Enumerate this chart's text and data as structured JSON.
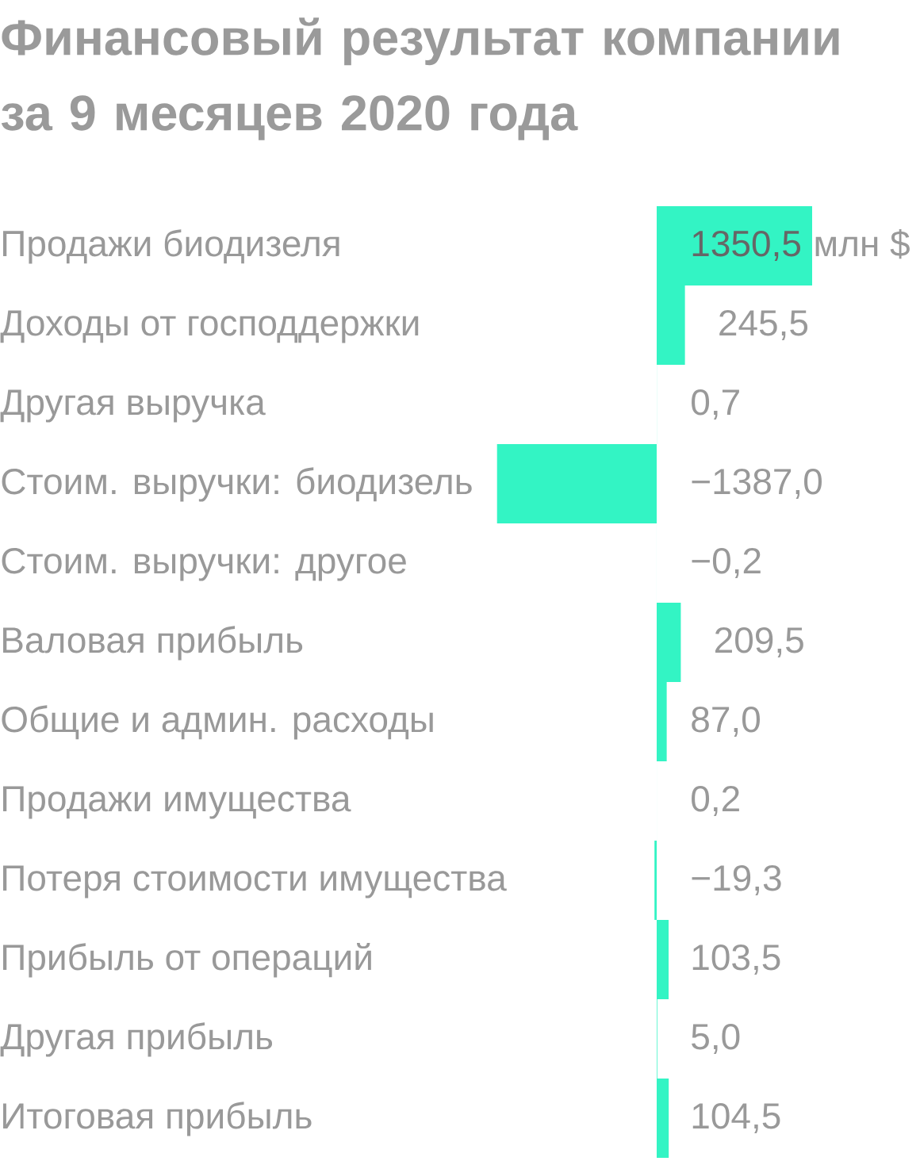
{
  "chart_data": {
    "type": "bar",
    "orientation": "horizontal",
    "title": "Финансовый результат компании за 9 месяцев 2020 года",
    "categories": [
      "Продажи биодизеля",
      "Доходы от господдержки",
      "Другая выручка",
      "Стоим. выручки: биодизель",
      "Стоим. выручки: другое",
      "Валовая прибыль",
      "Общие и админ. расходы",
      "Продажи имущества",
      "Потеря стоимости имущества",
      "Прибыль от операций",
      "Другая прибыль",
      "Итоговая прибыль"
    ],
    "values": [
      1350.5,
      245.5,
      0.7,
      -1387.0,
      -0.2,
      209.5,
      87.0,
      0.2,
      -19.3,
      103.5,
      5.0,
      104.5
    ],
    "value_labels": [
      "1350,5",
      "245,5",
      "0,7",
      "−1387,0",
      "−0,2",
      "209,5",
      "87,0",
      "0,2",
      "−19,3",
      "103,5",
      "5,0",
      "104,5"
    ],
    "color": "#33f4c4",
    "tick_labels": "y",
    "annotations": [
      "млн $"
    ]
  }
}
